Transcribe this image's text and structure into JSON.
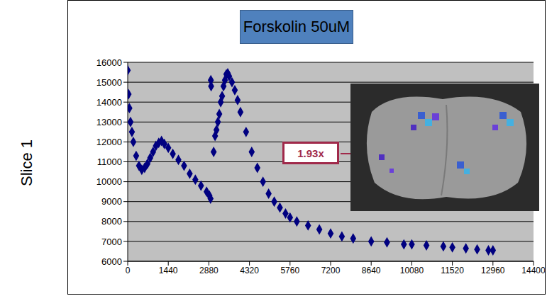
{
  "chart_data": {
    "type": "scatter",
    "title": "Forskolin 50uM",
    "ylabel": "Slice 1",
    "annotations": [
      "1.93x"
    ],
    "x": [
      0,
      30,
      60,
      100,
      150,
      200,
      300,
      400,
      500,
      600,
      700,
      800,
      900,
      1000,
      1100,
      1200,
      1300,
      1440,
      1600,
      1800,
      2000,
      2200,
      2400,
      2600,
      2800,
      2900,
      2940,
      2950,
      2960,
      3050,
      3100,
      3150,
      3200,
      3250,
      3300,
      3350,
      3400,
      3450,
      3500,
      3550,
      3600,
      3700,
      3800,
      3900,
      4000,
      4200,
      4400,
      4600,
      4800,
      5000,
      5200,
      5400,
      5600,
      5760,
      6000,
      6400,
      6800,
      7200,
      7600,
      8000,
      8640,
      9200,
      9800,
      10080,
      10600,
      11200,
      11520,
      12000,
      12400,
      12800,
      12960
    ],
    "values": [
      15600,
      14400,
      13700,
      13000,
      12500,
      12000,
      11300,
      10800,
      10600,
      10700,
      10900,
      11200,
      11500,
      11800,
      11950,
      12050,
      11900,
      11700,
      11400,
      11100,
      10800,
      10400,
      10100,
      9800,
      9500,
      9300,
      9150,
      15100,
      14800,
      11500,
      12300,
      12600,
      13000,
      13400,
      14000,
      14300,
      14800,
      15100,
      15400,
      15450,
      15300,
      15000,
      14600,
      14100,
      13500,
      12500,
      11500,
      10700,
      10000,
      9400,
      9000,
      8700,
      8400,
      8200,
      8000,
      7800,
      7600,
      7400,
      7250,
      7150,
      7000,
      6950,
      6850,
      6850,
      6800,
      6750,
      6700,
      6650,
      6600,
      6550,
      6550
    ],
    "color": "#000080",
    "marker": "diamond",
    "xlim": [
      0,
      14400
    ],
    "xticks": [
      0,
      1440,
      2880,
      4320,
      5760,
      7200,
      8640,
      10080,
      11520,
      12960,
      14400
    ],
    "ylim": [
      6000,
      16000
    ],
    "yticks": [
      6000,
      7000,
      8000,
      9000,
      10000,
      11000,
      12000,
      13000,
      14000,
      15000,
      16000
    ],
    "grid": true
  }
}
